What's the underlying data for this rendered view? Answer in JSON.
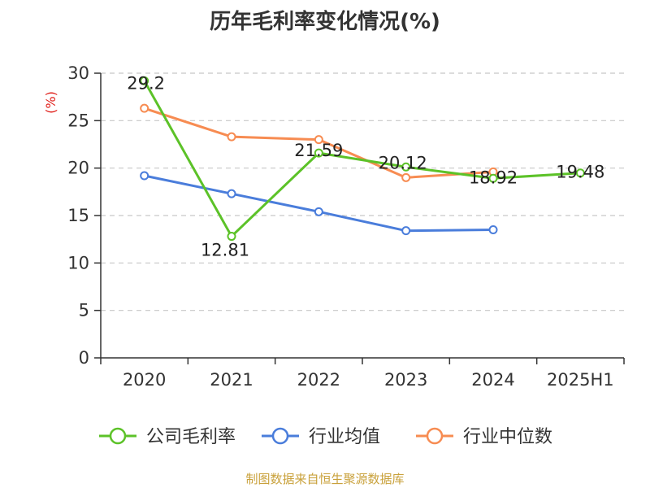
{
  "title": "历年毛利率变化情况(%)",
  "source": "制图数据来自恒生聚源数据库",
  "chart_data": {
    "type": "line",
    "title": "历年毛利率变化情况(%)",
    "xlabel": "",
    "ylabel": "(%)",
    "categories": [
      "2020",
      "2021",
      "2022",
      "2023",
      "2024",
      "2025H1"
    ],
    "ylim": [
      0,
      30
    ],
    "yticks": [
      0,
      5,
      10,
      15,
      20,
      25,
      30
    ],
    "grid": true,
    "legend_position": "bottom",
    "series": [
      {
        "name": "公司毛利率",
        "color": "#5cc228",
        "values": [
          29.2,
          12.81,
          21.59,
          20.12,
          18.92,
          19.48
        ],
        "labels": [
          "29.2",
          "12.81",
          "21.59",
          "20.12",
          "18.92",
          "19.48"
        ]
      },
      {
        "name": "行业均值",
        "color": "#4a7ddb",
        "values": [
          19.2,
          17.3,
          15.4,
          13.4,
          13.5,
          null
        ]
      },
      {
        "name": "行业中位数",
        "color": "#f78c52",
        "values": [
          26.3,
          23.3,
          23.0,
          19.0,
          19.6,
          null
        ]
      }
    ]
  }
}
